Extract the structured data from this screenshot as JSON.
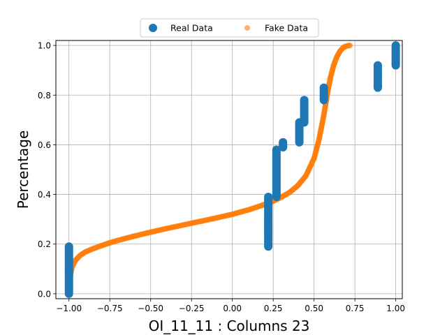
{
  "chart_data": {
    "type": "scatter",
    "xlabel": "OI_11_11 : Columns 23",
    "ylabel": "Percentage",
    "xlim": [
      -1.08,
      1.04
    ],
    "ylim": [
      -0.02,
      1.02
    ],
    "xticks": [
      -1.0,
      -0.75,
      -0.5,
      -0.25,
      0.0,
      0.25,
      0.5,
      0.75,
      1.0
    ],
    "xtick_labels": [
      "−1.00",
      "−0.75",
      "−0.50",
      "−0.25",
      "0.00",
      "0.25",
      "0.50",
      "0.75",
      "1.00"
    ],
    "yticks": [
      0.0,
      0.2,
      0.4,
      0.6,
      0.8,
      1.0
    ],
    "ytick_labels": [
      "0.0",
      "0.2",
      "0.4",
      "0.6",
      "0.8",
      "1.0"
    ],
    "grid": true,
    "legend_position": "top-center",
    "series": [
      {
        "name": "Real Data",
        "color": "#1f77b4",
        "marker": "circle",
        "segments": [
          {
            "x": -1.0,
            "y_from": 0.0,
            "y_to": 0.19
          },
          {
            "x": 0.22,
            "y_from": 0.19,
            "y_to": 0.39
          },
          {
            "x": 0.27,
            "y_from": 0.39,
            "y_to": 0.58
          },
          {
            "x": 0.31,
            "y_from": 0.59,
            "y_to": 0.61
          },
          {
            "x": 0.41,
            "y_from": 0.61,
            "y_to": 0.69
          },
          {
            "x": 0.44,
            "y_from": 0.69,
            "y_to": 0.78
          },
          {
            "x": 0.56,
            "y_from": 0.78,
            "y_to": 0.83
          },
          {
            "x": 0.89,
            "y_from": 0.83,
            "y_to": 0.92
          },
          {
            "x": 1.0,
            "y_from": 0.92,
            "y_to": 1.0
          }
        ]
      },
      {
        "name": "Fake Data",
        "color": "#ff7f0e",
        "marker": "circle",
        "curve": [
          [
            -1.0,
            0.0
          ],
          [
            -0.995,
            0.04
          ],
          [
            -0.99,
            0.08
          ],
          [
            -0.98,
            0.11
          ],
          [
            -0.96,
            0.135
          ],
          [
            -0.93,
            0.155
          ],
          [
            -0.9,
            0.168
          ],
          [
            -0.85,
            0.182
          ],
          [
            -0.8,
            0.194
          ],
          [
            -0.75,
            0.205
          ],
          [
            -0.7,
            0.215
          ],
          [
            -0.6,
            0.232
          ],
          [
            -0.5,
            0.248
          ],
          [
            -0.4,
            0.263
          ],
          [
            -0.3,
            0.277
          ],
          [
            -0.2,
            0.291
          ],
          [
            -0.1,
            0.305
          ],
          [
            0.0,
            0.32
          ],
          [
            0.1,
            0.338
          ],
          [
            0.2,
            0.36
          ],
          [
            0.25,
            0.373
          ],
          [
            0.3,
            0.389
          ],
          [
            0.35,
            0.408
          ],
          [
            0.4,
            0.435
          ],
          [
            0.45,
            0.475
          ],
          [
            0.5,
            0.545
          ],
          [
            0.53,
            0.62
          ],
          [
            0.56,
            0.72
          ],
          [
            0.58,
            0.8
          ],
          [
            0.6,
            0.87
          ],
          [
            0.62,
            0.92
          ],
          [
            0.64,
            0.955
          ],
          [
            0.66,
            0.978
          ],
          [
            0.68,
            0.992
          ],
          [
            0.7,
            0.998
          ],
          [
            0.72,
            1.0
          ]
        ]
      }
    ]
  }
}
